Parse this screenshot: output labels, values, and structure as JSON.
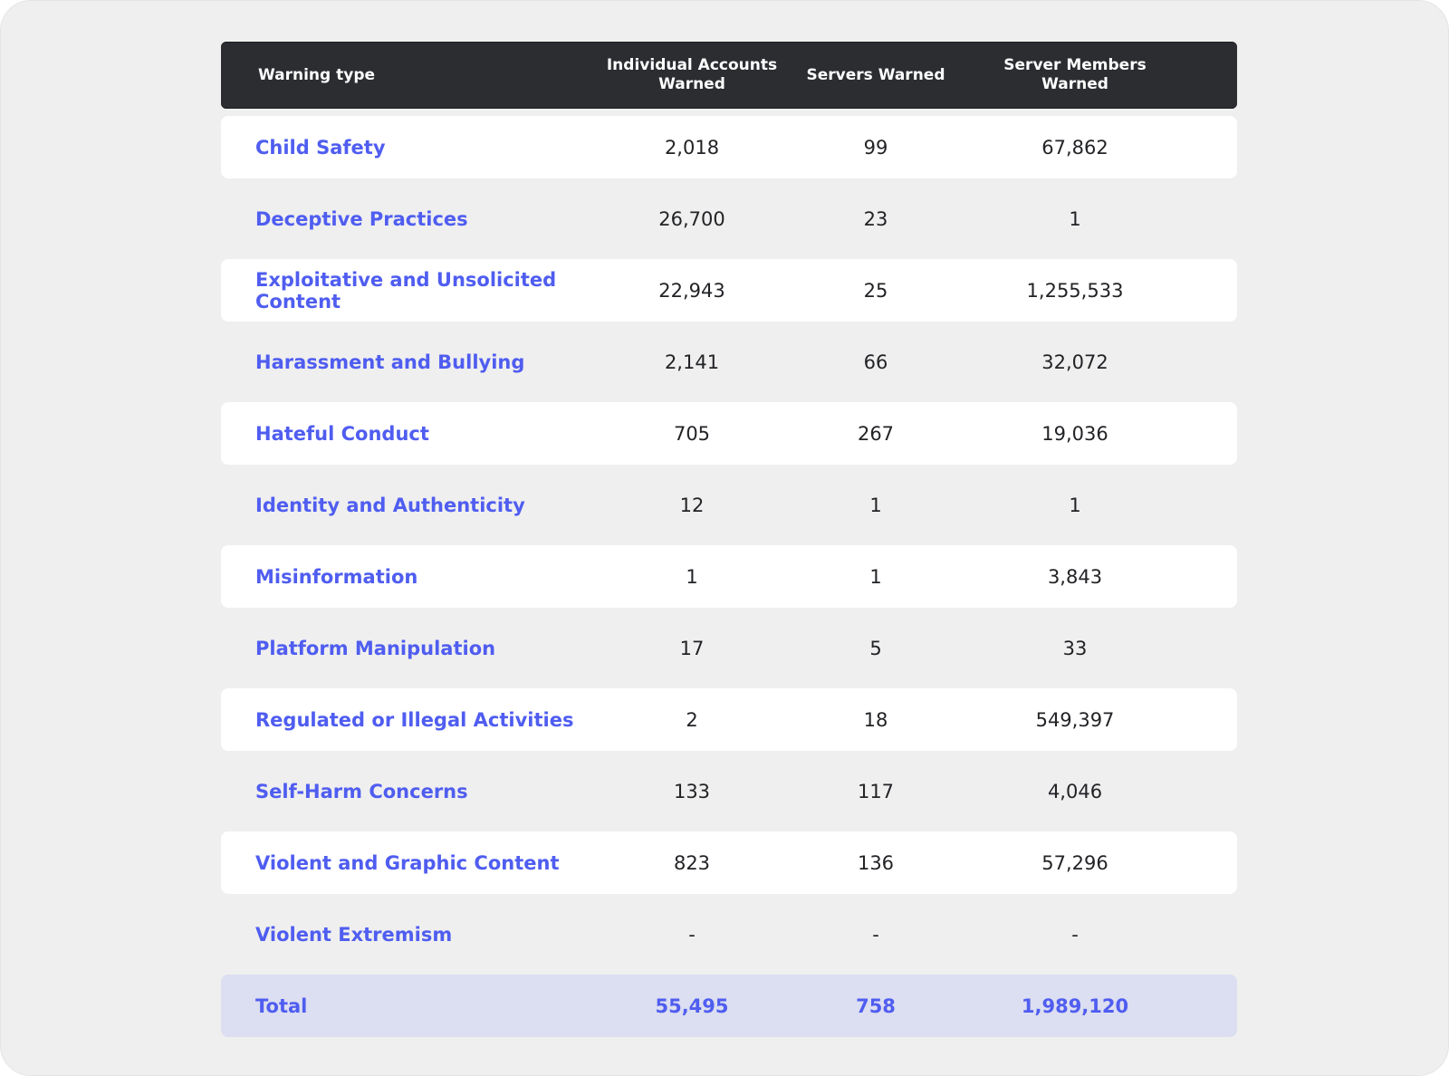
{
  "chart_data": {
    "type": "table",
    "columns": [
      "Warning type",
      "Individual Accounts\nWarned",
      "Servers Warned",
      "Server Members\nWarned"
    ],
    "rows": [
      {
        "type": "Child Safety",
        "individual": "2,018",
        "servers": "99",
        "members": "67,862"
      },
      {
        "type": "Deceptive Practices",
        "individual": "26,700",
        "servers": "23",
        "members": "1"
      },
      {
        "type": "Exploitative and Unsolicited Content",
        "individual": "22,943",
        "servers": "25",
        "members": "1,255,533"
      },
      {
        "type": "Harassment and Bullying",
        "individual": "2,141",
        "servers": "66",
        "members": "32,072"
      },
      {
        "type": "Hateful Conduct",
        "individual": "705",
        "servers": "267",
        "members": "19,036"
      },
      {
        "type": "Identity and Authenticity",
        "individual": "12",
        "servers": "1",
        "members": "1"
      },
      {
        "type": "Misinformation",
        "individual": "1",
        "servers": "1",
        "members": "3,843"
      },
      {
        "type": "Platform Manipulation",
        "individual": "17",
        "servers": "5",
        "members": "33"
      },
      {
        "type": "Regulated or Illegal Activities",
        "individual": "2",
        "servers": "18",
        "members": "549,397"
      },
      {
        "type": "Self-Harm Concerns",
        "individual": "133",
        "servers": "117",
        "members": "4,046"
      },
      {
        "type": "Violent and Graphic Content",
        "individual": "823",
        "servers": "136",
        "members": "57,296"
      },
      {
        "type": "Violent Extremism",
        "individual": "-",
        "servers": "-",
        "members": "-"
      }
    ],
    "total": {
      "type": "Total",
      "individual": "55,495",
      "servers": "758",
      "members": "1,989,120"
    }
  },
  "colors": {
    "header_bg": "#2b2d31",
    "label_text": "#4f5df0",
    "total_bg": "#dcdef1",
    "page_bg": "#efefef"
  }
}
